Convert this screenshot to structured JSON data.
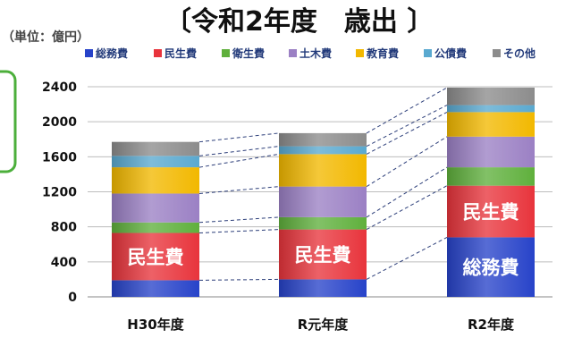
{
  "unit_label": "（単位：億円）",
  "title": "〔令和2年度　歳出 〕",
  "chart_data": {
    "type": "bar",
    "stacked": true,
    "categories": [
      "H30年度",
      "R元年度",
      "R2年度"
    ],
    "series": [
      {
        "name": "総務費",
        "color": "#2743c9",
        "values": [
          190,
          200,
          680
        ]
      },
      {
        "name": "民生費",
        "color": "#e8343c",
        "values": [
          540,
          570,
          590
        ]
      },
      {
        "name": "衛生費",
        "color": "#5fb03c",
        "values": [
          120,
          140,
          210
        ]
      },
      {
        "name": "土木費",
        "color": "#9b80c4",
        "values": [
          330,
          350,
          350
        ]
      },
      {
        "name": "教育費",
        "color": "#f2b800",
        "values": [
          300,
          370,
          280
        ]
      },
      {
        "name": "公債費",
        "color": "#5aa9d0",
        "values": [
          130,
          90,
          80
        ]
      },
      {
        "name": "その他",
        "color": "#8c8c8c",
        "values": [
          160,
          150,
          200
        ]
      }
    ],
    "ylim": [
      0,
      2400
    ],
    "yticks": [
      0,
      400,
      800,
      1200,
      1600,
      2000,
      2400
    ],
    "grid": true,
    "legend_position": "top",
    "segment_labels": [
      {
        "category_index": 0,
        "series_index": 1,
        "text": "民生費"
      },
      {
        "category_index": 1,
        "series_index": 1,
        "text": "民生費"
      },
      {
        "category_index": 2,
        "series_index": 1,
        "text": "民生費"
      },
      {
        "category_index": 2,
        "series_index": 0,
        "text": "総務費"
      }
    ]
  }
}
